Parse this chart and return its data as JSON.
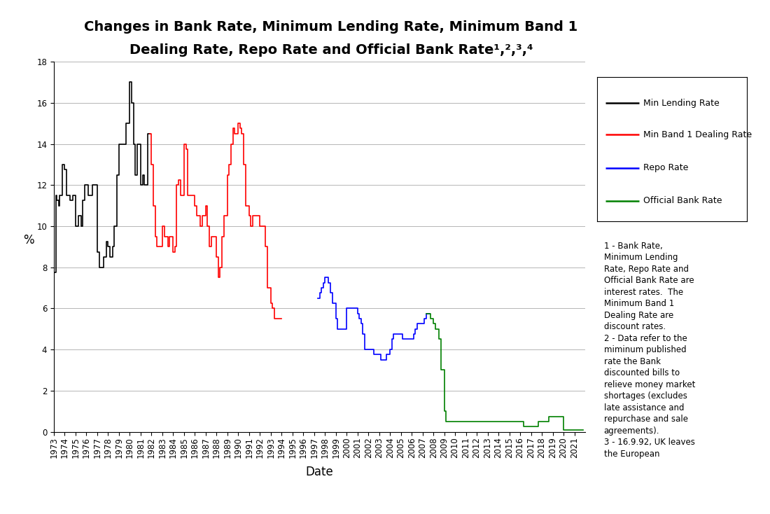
{
  "title_line1": "Changes in Bank Rate, Minimum Lending Rate, Minimum Band 1",
  "title_line2": "Dealing Rate, Repo Rate and Official Bank Rate¹,²,³,⁴",
  "xlabel": "Date",
  "ylabel": "%",
  "ylim": [
    0,
    18
  ],
  "yticks": [
    0,
    2,
    4,
    6,
    8,
    10,
    12,
    14,
    16,
    18
  ],
  "background_color": "#ffffff",
  "min_lending_rate": {
    "color": "#000000",
    "label": "Min Lending Rate",
    "data": [
      [
        1973.0,
        7.75
      ],
      [
        1973.17,
        11.5
      ],
      [
        1973.25,
        11.25
      ],
      [
        1973.42,
        11.0
      ],
      [
        1973.5,
        11.5
      ],
      [
        1973.67,
        11.5
      ],
      [
        1973.75,
        13.0
      ],
      [
        1974.0,
        12.75
      ],
      [
        1974.17,
        11.5
      ],
      [
        1974.5,
        11.25
      ],
      [
        1974.75,
        11.5
      ],
      [
        1975.0,
        10.0
      ],
      [
        1975.25,
        10.5
      ],
      [
        1975.5,
        10.0
      ],
      [
        1975.67,
        11.25
      ],
      [
        1975.83,
        12.0
      ],
      [
        1976.0,
        12.0
      ],
      [
        1976.17,
        11.5
      ],
      [
        1976.42,
        11.5
      ],
      [
        1976.58,
        12.0
      ],
      [
        1976.75,
        12.0
      ],
      [
        1977.0,
        8.75
      ],
      [
        1977.17,
        8.0
      ],
      [
        1977.42,
        8.0
      ],
      [
        1977.58,
        8.5
      ],
      [
        1977.83,
        9.25
      ],
      [
        1978.0,
        9.0
      ],
      [
        1978.17,
        8.5
      ],
      [
        1978.42,
        9.0
      ],
      [
        1978.58,
        10.0
      ],
      [
        1978.83,
        12.5
      ],
      [
        1979.0,
        14.0
      ],
      [
        1979.17,
        14.0
      ],
      [
        1979.33,
        14.0
      ],
      [
        1979.5,
        14.0
      ],
      [
        1979.67,
        15.0
      ],
      [
        1980.0,
        17.0
      ],
      [
        1980.17,
        16.0
      ],
      [
        1980.33,
        14.0
      ],
      [
        1980.5,
        12.5
      ],
      [
        1980.67,
        14.0
      ],
      [
        1981.0,
        12.0
      ],
      [
        1981.17,
        12.5
      ],
      [
        1981.33,
        12.0
      ],
      [
        1981.5,
        12.0
      ],
      [
        1981.67,
        14.5
      ],
      [
        1981.83,
        14.5
      ]
    ]
  },
  "min_band1_dealing_rate": {
    "color": "#ff0000",
    "label": "Min Band 1 Dealing Rate",
    "data": [
      [
        1981.83,
        14.5
      ],
      [
        1982.0,
        13.0
      ],
      [
        1982.17,
        11.0
      ],
      [
        1982.33,
        9.5
      ],
      [
        1982.5,
        9.0
      ],
      [
        1982.67,
        9.0
      ],
      [
        1983.0,
        10.0
      ],
      [
        1983.17,
        9.5
      ],
      [
        1983.33,
        9.5
      ],
      [
        1983.5,
        9.0
      ],
      [
        1983.67,
        9.5
      ],
      [
        1984.0,
        8.75
      ],
      [
        1984.17,
        9.0
      ],
      [
        1984.33,
        12.0
      ],
      [
        1984.5,
        12.25
      ],
      [
        1984.67,
        11.5
      ],
      [
        1985.0,
        14.0
      ],
      [
        1985.17,
        13.75
      ],
      [
        1985.33,
        11.5
      ],
      [
        1985.5,
        11.5
      ],
      [
        1985.67,
        11.5
      ],
      [
        1986.0,
        11.0
      ],
      [
        1986.17,
        10.5
      ],
      [
        1986.33,
        10.5
      ],
      [
        1986.5,
        10.0
      ],
      [
        1986.67,
        10.5
      ],
      [
        1987.0,
        11.0
      ],
      [
        1987.17,
        10.0
      ],
      [
        1987.33,
        9.0
      ],
      [
        1987.5,
        9.5
      ],
      [
        1987.67,
        9.5
      ],
      [
        1988.0,
        8.5
      ],
      [
        1988.17,
        7.5
      ],
      [
        1988.33,
        8.0
      ],
      [
        1988.5,
        9.5
      ],
      [
        1988.67,
        10.5
      ],
      [
        1989.0,
        12.5
      ],
      [
        1989.17,
        13.0
      ],
      [
        1989.33,
        14.0
      ],
      [
        1989.5,
        14.75
      ],
      [
        1989.67,
        14.5
      ],
      [
        1990.0,
        15.0
      ],
      [
        1990.17,
        14.75
      ],
      [
        1990.33,
        14.5
      ],
      [
        1990.5,
        13.0
      ],
      [
        1990.67,
        11.0
      ],
      [
        1991.0,
        10.5
      ],
      [
        1991.17,
        10.0
      ],
      [
        1991.33,
        10.5
      ],
      [
        1991.5,
        10.5
      ],
      [
        1992.0,
        10.0
      ],
      [
        1992.17,
        10.0
      ],
      [
        1992.33,
        10.0
      ],
      [
        1992.5,
        9.0
      ],
      [
        1992.67,
        7.0
      ],
      [
        1993.0,
        6.25
      ],
      [
        1993.17,
        6.0
      ],
      [
        1993.33,
        5.5
      ],
      [
        1993.5,
        5.5
      ],
      [
        1993.67,
        5.5
      ],
      [
        1993.83,
        5.5
      ],
      [
        1994.0,
        5.5
      ]
    ]
  },
  "repo_rate": {
    "color": "#0000ff",
    "label": "Repo Rate",
    "data": [
      [
        1997.33,
        6.5
      ],
      [
        1997.5,
        6.75
      ],
      [
        1997.67,
        7.0
      ],
      [
        1997.83,
        7.25
      ],
      [
        1998.0,
        7.5
      ],
      [
        1998.17,
        7.5
      ],
      [
        1998.33,
        7.25
      ],
      [
        1998.5,
        6.75
      ],
      [
        1998.67,
        6.25
      ],
      [
        1999.0,
        5.5
      ],
      [
        1999.17,
        5.0
      ],
      [
        1999.33,
        5.0
      ],
      [
        1999.5,
        5.0
      ],
      [
        1999.67,
        5.0
      ],
      [
        2000.0,
        6.0
      ],
      [
        2000.17,
        6.0
      ],
      [
        2000.33,
        6.0
      ],
      [
        2000.5,
        6.0
      ],
      [
        2000.67,
        6.0
      ],
      [
        2001.0,
        5.75
      ],
      [
        2001.17,
        5.5
      ],
      [
        2001.33,
        5.25
      ],
      [
        2001.5,
        4.75
      ],
      [
        2001.67,
        4.0
      ],
      [
        2002.0,
        4.0
      ],
      [
        2002.17,
        4.0
      ],
      [
        2002.33,
        4.0
      ],
      [
        2002.5,
        3.75
      ],
      [
        2002.67,
        3.75
      ],
      [
        2003.0,
        3.75
      ],
      [
        2003.17,
        3.5
      ],
      [
        2003.33,
        3.5
      ],
      [
        2003.5,
        3.5
      ],
      [
        2003.67,
        3.75
      ],
      [
        2004.0,
        4.0
      ],
      [
        2004.17,
        4.5
      ],
      [
        2004.33,
        4.75
      ],
      [
        2004.5,
        4.75
      ],
      [
        2004.67,
        4.75
      ],
      [
        2005.0,
        4.75
      ],
      [
        2005.17,
        4.5
      ],
      [
        2005.33,
        4.5
      ],
      [
        2005.5,
        4.5
      ],
      [
        2005.67,
        4.5
      ],
      [
        2006.0,
        4.5
      ],
      [
        2006.17,
        4.75
      ],
      [
        2006.33,
        5.0
      ],
      [
        2006.5,
        5.25
      ],
      [
        2006.67,
        5.25
      ],
      [
        2007.0,
        5.25
      ],
      [
        2007.17,
        5.5
      ],
      [
        2007.33,
        5.75
      ],
      [
        2007.5,
        5.75
      ],
      [
        2007.67,
        5.75
      ]
    ]
  },
  "official_bank_rate": {
    "color": "#008000",
    "label": "Official Bank Rate",
    "data": [
      [
        2007.33,
        5.75
      ],
      [
        2007.5,
        5.75
      ],
      [
        2007.67,
        5.75
      ],
      [
        2007.75,
        5.5
      ],
      [
        2007.83,
        5.5
      ],
      [
        2008.0,
        5.25
      ],
      [
        2008.17,
        5.0
      ],
      [
        2008.33,
        5.0
      ],
      [
        2008.5,
        4.5
      ],
      [
        2008.67,
        3.0
      ],
      [
        2009.0,
        1.0
      ],
      [
        2009.17,
        0.5
      ],
      [
        2009.33,
        0.5
      ],
      [
        2009.5,
        0.5
      ],
      [
        2009.67,
        0.5
      ],
      [
        2009.83,
        0.5
      ],
      [
        2010.0,
        0.5
      ],
      [
        2010.5,
        0.5
      ],
      [
        2011.0,
        0.5
      ],
      [
        2011.5,
        0.5
      ],
      [
        2012.0,
        0.5
      ],
      [
        2012.5,
        0.5
      ],
      [
        2013.0,
        0.5
      ],
      [
        2013.5,
        0.5
      ],
      [
        2014.0,
        0.5
      ],
      [
        2014.5,
        0.5
      ],
      [
        2015.0,
        0.5
      ],
      [
        2015.5,
        0.5
      ],
      [
        2016.0,
        0.5
      ],
      [
        2016.33,
        0.25
      ],
      [
        2016.67,
        0.25
      ],
      [
        2017.0,
        0.25
      ],
      [
        2017.33,
        0.25
      ],
      [
        2017.67,
        0.5
      ],
      [
        2018.0,
        0.5
      ],
      [
        2018.33,
        0.5
      ],
      [
        2018.67,
        0.75
      ],
      [
        2019.0,
        0.75
      ],
      [
        2019.33,
        0.75
      ],
      [
        2019.67,
        0.75
      ],
      [
        2020.0,
        0.1
      ],
      [
        2020.33,
        0.1
      ],
      [
        2020.67,
        0.1
      ],
      [
        2021.0,
        0.1
      ],
      [
        2021.33,
        0.1
      ],
      [
        2021.5,
        0.1
      ],
      [
        2021.67,
        0.1
      ],
      [
        2021.83,
        0.1
      ]
    ]
  },
  "legend_note": "1 - Bank Rate,\nMinimum Lending\nRate, Repo Rate and\nOfficial Bank Rate are\ninterest rates.  The\nMinimum Band 1\nDealing Rate are\ndiscount rates.\n2 - Data refer to the\nmiminum published\nrate the Bank\ndiscounted bills to\nrelieve money market\nshortages (excludes\nlate assistance and\nrepurchase and sale\nagreements).\n3 - 16.9.92, UK leaves\nthe European",
  "xtick_years": [
    1973,
    1974,
    1975,
    1976,
    1977,
    1978,
    1979,
    1980,
    1981,
    1982,
    1983,
    1984,
    1985,
    1986,
    1987,
    1988,
    1989,
    1990,
    1991,
    1992,
    1993,
    1994,
    1995,
    1996,
    1997,
    1998,
    1999,
    2000,
    2001,
    2002,
    2003,
    2004,
    2005,
    2006,
    2007,
    2008,
    2009,
    2010,
    2011,
    2012,
    2013,
    2014,
    2015,
    2016,
    2017,
    2018,
    2019,
    2020,
    2021
  ],
  "title_fontsize": 14,
  "axis_label_fontsize": 12,
  "tick_fontsize": 8.5,
  "legend_fontsize": 9,
  "note_fontsize": 8.5
}
